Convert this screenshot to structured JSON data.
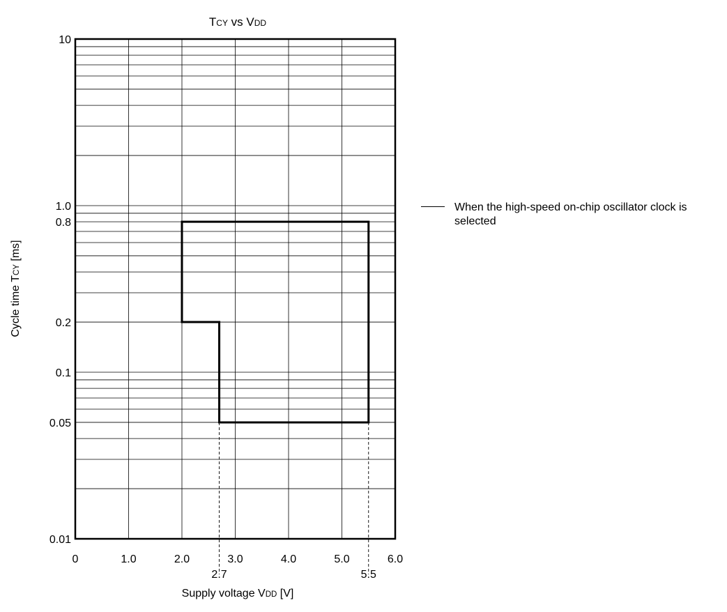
{
  "chart_data": {
    "type": "line",
    "title": {
      "main": "T",
      "main_sub": "CY",
      "mid": " vs V",
      "mid_sub": "DD"
    },
    "xlabel": {
      "main": "Supply voltage V",
      "sub": "DD",
      "tail": " [V]"
    },
    "ylabel": {
      "main": "Cycle time T",
      "sub": "CY",
      "tail": " [ms]"
    },
    "x_scale": "linear",
    "y_scale": "log",
    "xlim": [
      0,
      6.0
    ],
    "ylim": [
      0.01,
      10
    ],
    "x_ticks": [
      {
        "value": 0,
        "label": "0"
      },
      {
        "value": 1.0,
        "label": "1.0"
      },
      {
        "value": 2.0,
        "label": "2.0"
      },
      {
        "value": 3.0,
        "label": "3.0"
      },
      {
        "value": 4.0,
        "label": "4.0"
      },
      {
        "value": 5.0,
        "label": "5.0"
      },
      {
        "value": 6.0,
        "label": "6.0"
      }
    ],
    "x_extra_ticks": [
      {
        "value": 2.7,
        "label": "2.7"
      },
      {
        "value": 5.5,
        "label": "5.5"
      }
    ],
    "y_ticks": [
      {
        "value": 10,
        "label": "10"
      },
      {
        "value": 1.0,
        "label": "1.0"
      },
      {
        "value": 0.8,
        "label": "0.8"
      },
      {
        "value": 0.2,
        "label": "0.2"
      },
      {
        "value": 0.1,
        "label": "0.1"
      },
      {
        "value": 0.05,
        "label": "0.05"
      },
      {
        "value": 0.01,
        "label": "0.01"
      }
    ],
    "grid": true,
    "legend_position": "right",
    "series": [
      {
        "name": "When the high-speed on-chip oscillator clock is selected",
        "color": "#000000",
        "closed": true,
        "points": [
          {
            "x": 2.0,
            "y": 0.8
          },
          {
            "x": 5.5,
            "y": 0.8
          },
          {
            "x": 5.5,
            "y": 0.05
          },
          {
            "x": 2.7,
            "y": 0.05
          },
          {
            "x": 2.7,
            "y": 0.2
          },
          {
            "x": 2.0,
            "y": 0.2
          }
        ]
      }
    ]
  }
}
